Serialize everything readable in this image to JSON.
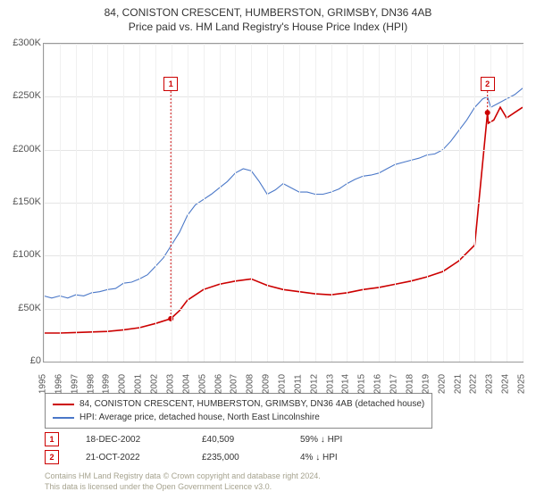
{
  "title": {
    "line1": "84, CONISTON CRESCENT, HUMBERSTON, GRIMSBY, DN36 4AB",
    "line2": "Price paid vs. HM Land Registry's House Price Index (HPI)",
    "fontsize": 12
  },
  "chart": {
    "type": "line",
    "background_color": "#ffffff",
    "grid_color": "#e5e5e5",
    "border_color": "#999999",
    "y_axis": {
      "min": 0,
      "max": 300000,
      "step": 50000,
      "tick_format": "£K",
      "ticks": [
        "£0",
        "£50K",
        "£100K",
        "£150K",
        "£200K",
        "£250K",
        "£300K"
      ]
    },
    "x_axis": {
      "min": 1995,
      "max": 2025,
      "step": 1,
      "ticks": [
        1995,
        1996,
        1997,
        1998,
        1999,
        2000,
        2001,
        2002,
        2003,
        2004,
        2005,
        2006,
        2007,
        2008,
        2009,
        2010,
        2011,
        2012,
        2013,
        2014,
        2015,
        2016,
        2017,
        2018,
        2019,
        2020,
        2021,
        2022,
        2023,
        2024,
        2025
      ]
    },
    "series": [
      {
        "name": "paid",
        "label": "84, CONISTON CRESCENT, HUMBERSTON, GRIMSBY, DN36 4AB (detached house)",
        "color": "#cc0000",
        "width": 1.6,
        "data": [
          [
            1995,
            27000
          ],
          [
            1996,
            27000
          ],
          [
            1997,
            27500
          ],
          [
            1998,
            28000
          ],
          [
            1999,
            28500
          ],
          [
            2000,
            30000
          ],
          [
            2001,
            32000
          ],
          [
            2002,
            36000
          ],
          [
            2002.96,
            40509
          ],
          [
            2003.5,
            48000
          ],
          [
            2004,
            58000
          ],
          [
            2005,
            68000
          ],
          [
            2006,
            73000
          ],
          [
            2007,
            76000
          ],
          [
            2008,
            78000
          ],
          [
            2009,
            72000
          ],
          [
            2010,
            68000
          ],
          [
            2011,
            66000
          ],
          [
            2012,
            64000
          ],
          [
            2013,
            63000
          ],
          [
            2014,
            65000
          ],
          [
            2015,
            68000
          ],
          [
            2016,
            70000
          ],
          [
            2017,
            73000
          ],
          [
            2018,
            76000
          ],
          [
            2019,
            80000
          ],
          [
            2020,
            85000
          ],
          [
            2021,
            95000
          ],
          [
            2022,
            110000
          ],
          [
            2022.8,
            235000
          ],
          [
            2022.85,
            225000
          ],
          [
            2023.2,
            228000
          ],
          [
            2023.6,
            240000
          ],
          [
            2024,
            230000
          ],
          [
            2024.5,
            235000
          ],
          [
            2025,
            240000
          ]
        ]
      },
      {
        "name": "hpi",
        "label": "HPI: Average price, detached house, North East Lincolnshire",
        "color": "#4b78c8",
        "width": 1.1,
        "data": [
          [
            1995,
            62000
          ],
          [
            1995.5,
            60000
          ],
          [
            1996,
            62000
          ],
          [
            1996.5,
            60000
          ],
          [
            1997,
            63000
          ],
          [
            1997.5,
            62000
          ],
          [
            1998,
            65000
          ],
          [
            1998.5,
            66000
          ],
          [
            1999,
            68000
          ],
          [
            1999.5,
            69000
          ],
          [
            2000,
            74000
          ],
          [
            2000.5,
            75000
          ],
          [
            2001,
            78000
          ],
          [
            2001.5,
            82000
          ],
          [
            2002,
            90000
          ],
          [
            2002.5,
            98000
          ],
          [
            2003,
            110000
          ],
          [
            2003.5,
            122000
          ],
          [
            2004,
            138000
          ],
          [
            2004.5,
            148000
          ],
          [
            2005,
            153000
          ],
          [
            2005.5,
            158000
          ],
          [
            2006,
            164000
          ],
          [
            2006.5,
            170000
          ],
          [
            2007,
            178000
          ],
          [
            2007.5,
            182000
          ],
          [
            2008,
            180000
          ],
          [
            2008.5,
            170000
          ],
          [
            2009,
            158000
          ],
          [
            2009.5,
            162000
          ],
          [
            2010,
            168000
          ],
          [
            2010.5,
            164000
          ],
          [
            2011,
            160000
          ],
          [
            2011.5,
            160000
          ],
          [
            2012,
            158000
          ],
          [
            2012.5,
            158000
          ],
          [
            2013,
            160000
          ],
          [
            2013.5,
            163000
          ],
          [
            2014,
            168000
          ],
          [
            2014.5,
            172000
          ],
          [
            2015,
            175000
          ],
          [
            2015.5,
            176000
          ],
          [
            2016,
            178000
          ],
          [
            2016.5,
            182000
          ],
          [
            2017,
            186000
          ],
          [
            2017.5,
            188000
          ],
          [
            2018,
            190000
          ],
          [
            2018.5,
            192000
          ],
          [
            2019,
            195000
          ],
          [
            2019.5,
            196000
          ],
          [
            2020,
            200000
          ],
          [
            2020.5,
            208000
          ],
          [
            2021,
            218000
          ],
          [
            2021.5,
            228000
          ],
          [
            2022,
            240000
          ],
          [
            2022.5,
            248000
          ],
          [
            2022.8,
            250000
          ],
          [
            2023,
            240000
          ],
          [
            2023.5,
            244000
          ],
          [
            2024,
            248000
          ],
          [
            2024.5,
            252000
          ],
          [
            2025,
            258000
          ]
        ]
      }
    ],
    "markers": [
      {
        "id": 1,
        "label": "1",
        "color": "#cc0000",
        "x": 2002.96,
        "y": 262000
      },
      {
        "id": 2,
        "label": "2",
        "color": "#cc0000",
        "x": 2022.8,
        "y": 262000
      }
    ]
  },
  "legend": {
    "border_color": "#888888",
    "items": [
      {
        "color": "#cc0000",
        "text": "84, CONISTON CRESCENT, HUMBERSTON, GRIMSBY, DN36 4AB (detached house)"
      },
      {
        "color": "#4b78c8",
        "text": "HPI: Average price, detached house, North East Lincolnshire"
      }
    ]
  },
  "transactions": [
    {
      "n": "1",
      "color": "#cc0000",
      "date": "18-DEC-2002",
      "price": "£40,509",
      "hpi": "59% ↓ HPI"
    },
    {
      "n": "2",
      "color": "#cc0000",
      "date": "21-OCT-2022",
      "price": "£235,000",
      "hpi": "4% ↓ HPI"
    }
  ],
  "attribution": {
    "line1": "Contains HM Land Registry data © Crown copyright and database right 2024.",
    "line2": "This data is licensed under the Open Government Licence v3.0.",
    "color": "#a6a38f"
  }
}
